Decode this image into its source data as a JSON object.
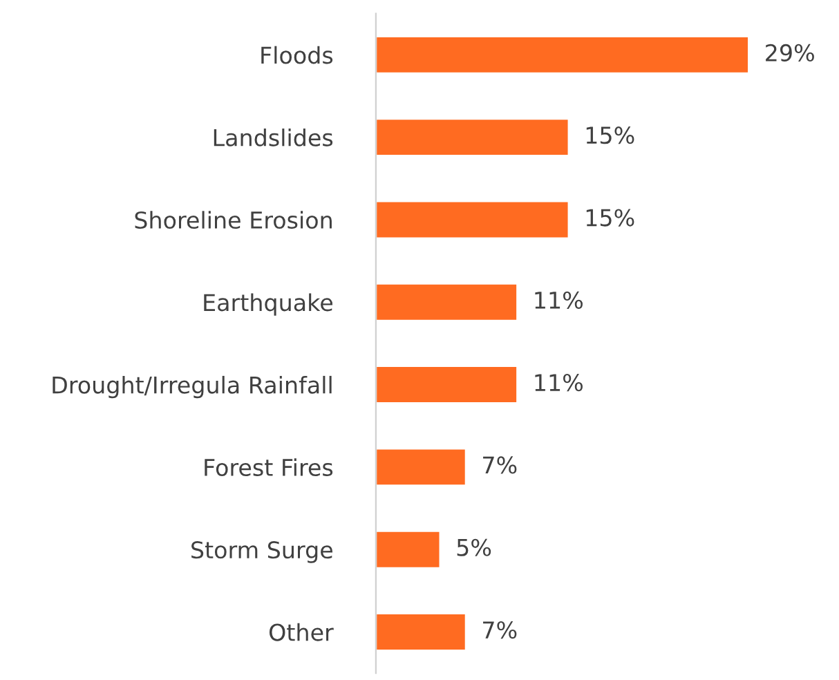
{
  "chart_data": {
    "type": "bar",
    "orientation": "horizontal",
    "categories": [
      "Floods",
      "Landslides",
      "Shoreline Erosion",
      "Earthquake",
      "Drought/Irregula Rainfall",
      "Forest Fires",
      "Storm Surge",
      "Other"
    ],
    "values": [
      29,
      15,
      15,
      11,
      11,
      7,
      5,
      7
    ],
    "value_labels": [
      "29%",
      "15%",
      "15%",
      "11%",
      "11%",
      "7%",
      "5%",
      "7%"
    ],
    "color": "#ff6b21",
    "grid": false,
    "legend": false
  }
}
